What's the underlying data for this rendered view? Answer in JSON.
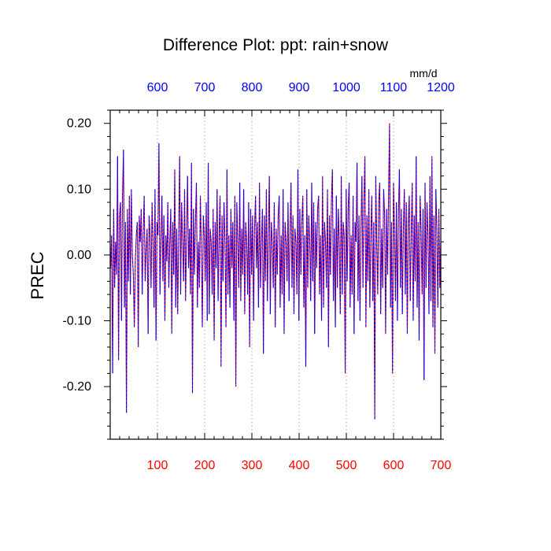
{
  "chart_data": {
    "type": "line",
    "title": "Difference Plot: ppt: rain+snow",
    "units_label": "mm/d",
    "ylabel": "PREC",
    "xlabel": "",
    "x_bottom": {
      "range": [
        0,
        700
      ],
      "ticks": [
        100,
        200,
        300,
        400,
        500,
        600,
        700
      ],
      "tick_labels": [
        "100",
        "200",
        "300",
        "400",
        "500",
        "600",
        "700"
      ],
      "color": "#ff0000"
    },
    "x_top": {
      "range": [
        500,
        1200
      ],
      "ticks": [
        600,
        700,
        800,
        900,
        1000,
        1100,
        1200
      ],
      "tick_labels": [
        "600",
        "700",
        "800",
        "900",
        "1000",
        "1100",
        "1200"
      ],
      "color": "#0000ff"
    },
    "y": {
      "range": [
        -0.28,
        0.22
      ],
      "ticks": [
        -0.2,
        -0.1,
        0.0,
        0.1,
        0.2
      ],
      "tick_labels": [
        "-0.20",
        "-0.10",
        "0.00",
        "0.10",
        "0.20"
      ]
    },
    "grid": "vertical dotted at bottom-axis ticks",
    "series": [
      {
        "name": "red (bottom axis)",
        "color": "#ff0000",
        "style": "dashed",
        "x_start": 1,
        "values": [
          -0.02,
          0.03,
          -0.18,
          0.07,
          -0.05,
          0.02,
          -0.03,
          0.15,
          -0.16,
          0.06,
          0.08,
          -0.1,
          0.09,
          0.16,
          -0.08,
          0.05,
          -0.24,
          0.07,
          -0.04,
          0.09,
          -0.06,
          0.1,
          0.0,
          -0.03,
          -0.11,
          -0.01,
          0.03,
          0.05,
          -0.14,
          0.06,
          0.02,
          0.07,
          -0.06,
          0.03,
          0.09,
          -0.04,
          0.01,
          0.04,
          -0.12,
          0.06,
          0.03,
          -0.05,
          0.08,
          0.02,
          -0.08,
          0.1,
          -0.13,
          0.05,
          0.03,
          0.17,
          -0.06,
          0.02,
          0.09,
          -0.04,
          0.06,
          -0.1,
          0.03,
          -0.01,
          0.08,
          -0.05,
          0.02,
          0.07,
          -0.12,
          0.05,
          -0.03,
          0.13,
          -0.08,
          0.04,
          -0.09,
          0.03,
          0.15,
          -0.06,
          0.08,
          0.02,
          -0.04,
          0.1,
          -0.07,
          0.03,
          0.12,
          -0.02,
          0.04,
          -0.06,
          0.14,
          -0.21,
          0.07,
          -0.03,
          0.05,
          0.11,
          -0.08,
          0.02,
          -0.05,
          0.09,
          0.01,
          -0.11,
          0.06,
          0.03,
          -0.04,
          0.08,
          -0.1,
          0.14,
          -0.09,
          0.04,
          0.02,
          -0.06,
          0.07,
          -0.13,
          0.05,
          -0.02,
          0.1,
          -0.07,
          0.03,
          0.09,
          -0.17,
          0.06,
          -0.04,
          0.08,
          0.02,
          -0.11,
          0.13,
          -0.06,
          0.03,
          -0.08,
          0.07,
          -0.02,
          0.05,
          -0.1,
          0.09,
          -0.2,
          0.08,
          0.02,
          -0.05,
          0.11,
          -0.07,
          0.04,
          -0.03,
          0.1,
          -0.09,
          0.05,
          0.02,
          -0.06,
          0.08,
          -0.14,
          0.07,
          -0.03,
          0.06,
          -0.1,
          0.04,
          0.09,
          -0.02,
          0.05,
          -0.08,
          0.11,
          -0.05,
          0.02,
          0.07,
          -0.15,
          0.06,
          -0.04,
          0.1,
          -0.07,
          0.03,
          0.12,
          -0.09,
          0.05,
          0.02,
          -0.05,
          0.08,
          -0.11,
          0.04,
          -0.03,
          0.06,
          0.09,
          -0.08,
          0.03,
          -0.06,
          0.1,
          -0.12,
          0.05,
          0.02,
          -0.04,
          0.08,
          -0.07,
          0.03,
          0.11,
          -0.05,
          0.06,
          -0.09,
          0.04,
          0.02,
          -0.06,
          0.13,
          -0.1,
          0.07,
          -0.03,
          0.05,
          0.09,
          -0.08,
          0.03,
          -0.17,
          0.1,
          -0.05,
          0.06,
          0.02,
          -0.07,
          0.11,
          -0.04,
          0.08,
          -0.12,
          0.05,
          -0.02,
          0.07,
          0.09,
          -0.06,
          0.03,
          -0.1,
          0.12,
          -0.08,
          0.05,
          0.02,
          -0.05,
          0.1,
          -0.14,
          0.06,
          -0.03,
          0.08,
          0.13,
          -0.07,
          0.04,
          -0.11,
          0.09,
          -0.05,
          0.07,
          0.02,
          -0.09,
          0.12,
          -0.06,
          0.05,
          0.03,
          -0.18,
          0.1,
          -0.04,
          0.07,
          0.11,
          -0.08,
          0.03,
          -0.06,
          0.09,
          -0.12,
          0.05,
          0.02,
          0.14,
          -0.07,
          0.06,
          -0.1,
          0.04,
          0.12,
          -0.05,
          0.08,
          0.15,
          -0.11,
          0.06,
          -0.04,
          0.1,
          -0.08,
          0.03,
          0.09,
          -0.07,
          0.05,
          -0.25,
          0.12,
          0.02,
          -0.06,
          0.08,
          0.11,
          -0.09,
          0.04,
          -0.05,
          0.1,
          0.06,
          -0.12,
          0.07,
          -0.03,
          0.09,
          0.2,
          -0.08,
          0.05,
          -0.18,
          0.11,
          0.04,
          -0.07,
          0.08,
          -0.1,
          0.06,
          0.13,
          -0.05,
          0.07,
          -0.09,
          0.04,
          0.1,
          -0.06,
          0.08,
          -0.12,
          0.05,
          0.09,
          -0.07,
          0.03,
          0.11,
          -0.1,
          0.06,
          -0.04,
          0.15,
          -0.08,
          0.05,
          -0.13,
          0.09,
          0.04,
          -0.06,
          0.07,
          -0.19,
          0.11,
          -0.05,
          0.08,
          0.03,
          -0.09,
          0.12,
          -0.07,
          0.15,
          -0.11,
          0.06,
          -0.15,
          0.1,
          0.04,
          -0.08,
          0.07,
          -0.05,
          0.02
        ],
        "note": "estimated noisy values centred near 0, sampled every ~2 units across 0–700"
      },
      {
        "name": "blue (top axis)",
        "color": "#0000ff",
        "style": "dashed",
        "note": "overlays the red series (identical values against the top axis 500–1200)"
      }
    ]
  }
}
